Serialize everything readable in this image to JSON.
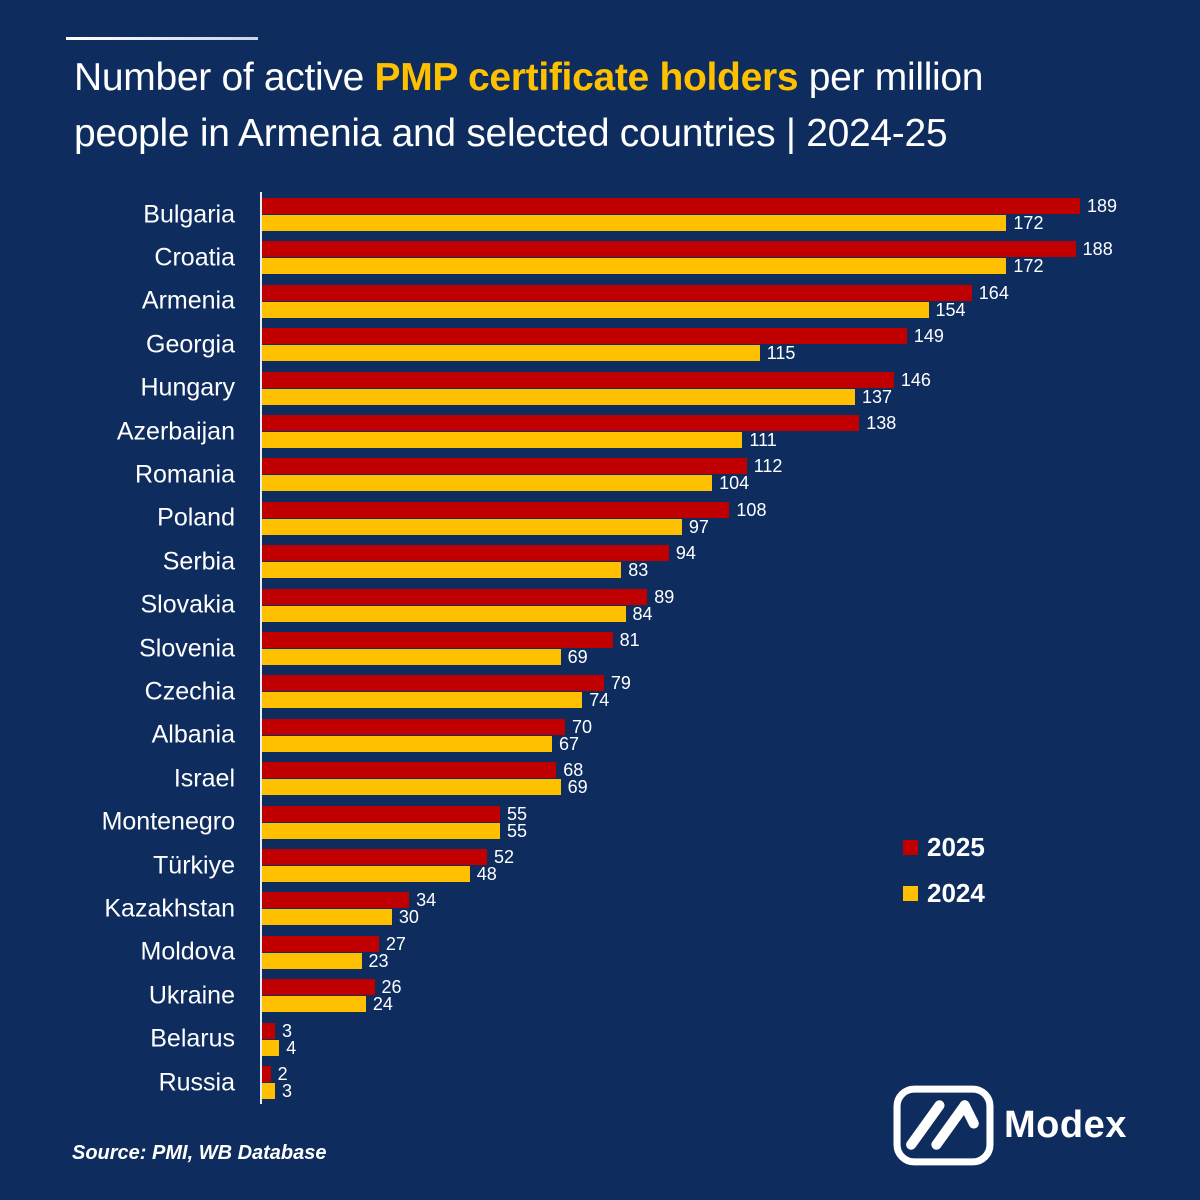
{
  "title": {
    "line1_pre": "Number of active ",
    "line1_highlight": "PMP certificate holders",
    "line1_post": " per million",
    "line2": "people in Armenia and selected countries | 2024-25"
  },
  "chart_data": {
    "type": "bar",
    "orientation": "horizontal",
    "title": "Number of active PMP certificate holders per million people in Armenia and selected countries | 2024-25",
    "categories": [
      "Bulgaria",
      "Croatia",
      "Armenia",
      "Georgia",
      "Hungary",
      "Azerbaijan",
      "Romania",
      "Poland",
      "Serbia",
      "Slovakia",
      "Slovenia",
      "Czechia",
      "Albania",
      "Israel",
      "Montenegro",
      "Türkiye",
      "Kazakhstan",
      "Moldova",
      "Ukraine",
      "Belarus",
      "Russia"
    ],
    "series": [
      {
        "name": "2025",
        "color": "#c00000",
        "values": [
          189,
          188,
          164,
          149,
          146,
          138,
          112,
          108,
          94,
          89,
          81,
          79,
          70,
          68,
          55,
          52,
          34,
          27,
          26,
          3,
          2
        ]
      },
      {
        "name": "2024",
        "color": "#ffc000",
        "values": [
          172,
          172,
          154,
          115,
          137,
          111,
          104,
          97,
          83,
          84,
          69,
          74,
          67,
          69,
          55,
          48,
          30,
          23,
          24,
          4,
          3
        ]
      }
    ],
    "xlim": [
      0,
      189
    ],
    "grid": false,
    "value_labels": true,
    "legend_position": "right-middle"
  },
  "legend": {
    "items": [
      {
        "label": "2025",
        "color": "#c00000"
      },
      {
        "label": "2024",
        "color": "#ffc000"
      }
    ]
  },
  "source": "Source: PMI, WB Database",
  "logo": {
    "text": "Modex",
    "icon": "modex-m-icon"
  },
  "colors": {
    "background": "#0e2d5e",
    "bar_2025": "#c00000",
    "bar_2024": "#ffc000",
    "title_highlight": "#ffc000",
    "text": "#ffffff",
    "axis": "#e9eef6"
  }
}
